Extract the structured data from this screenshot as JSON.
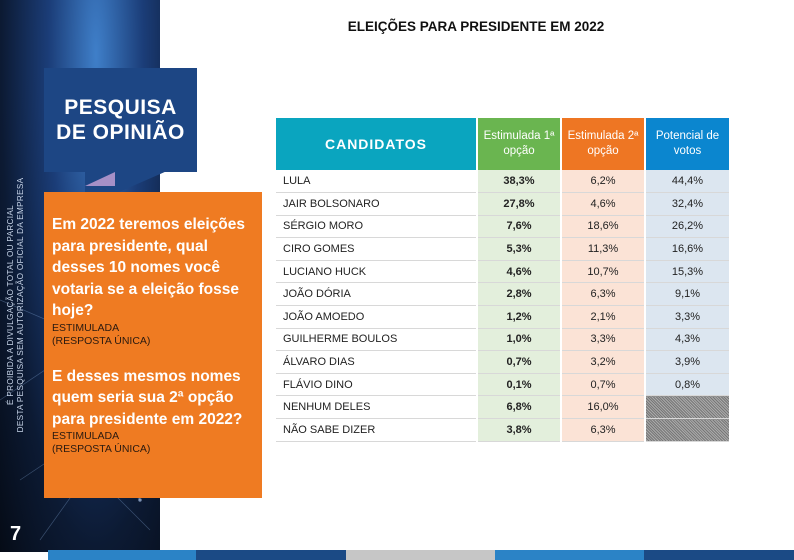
{
  "sidebar": {
    "vertical_notice": [
      "É PROIBIDA A DIVULGAÇÃO TOTAL OU PARCIAL",
      "DESTA PESQUISA SEM AUTORIZAÇÃO OFICIAL DA EMPRESA"
    ],
    "title_line1": "PESQUISA",
    "title_line2": "DE OPINIÃO",
    "question1": "Em 2022 teremos eleições para presidente, qual desses 10 nomes você votaria se a eleição fosse hoje?",
    "question1_sub1": "ESTIMULADA",
    "question1_sub2": "(RESPOSTA ÚNICA)",
    "question2": "E desses mesmos nomes quem seria sua 2ª opção para presidente em 2022?",
    "question2_sub1": "ESTIMULADA",
    "question2_sub2": "(RESPOSTA ÚNICA)",
    "page_number": "7"
  },
  "title": "ELEIÇÕES PARA PRESIDENTE EM 2022",
  "table": {
    "headers": [
      "CANDIDATOS",
      "Estimulada 1ª opção",
      "Estimulada 2ª opção",
      "Potencial de votos"
    ],
    "rows": [
      [
        "LULA",
        "38,3%",
        "6,2%",
        "44,4%"
      ],
      [
        "JAIR BOLSONARO",
        "27,8%",
        "4,6%",
        "32,4%"
      ],
      [
        "SÉRGIO MORO",
        "7,6%",
        "18,6%",
        "26,2%"
      ],
      [
        "CIRO GOMES",
        "5,3%",
        "11,3%",
        "16,6%"
      ],
      [
        "LUCIANO HUCK",
        "4,6%",
        "10,7%",
        "15,3%"
      ],
      [
        "JOÃO DÓRIA",
        "2,8%",
        "6,3%",
        "9,1%"
      ],
      [
        "JOÃO AMOEDO",
        "1,2%",
        "2,1%",
        "3,3%"
      ],
      [
        "GUILHERME BOULOS",
        "1,0%",
        "3,3%",
        "4,3%"
      ],
      [
        "ÁLVARO DIAS",
        "0,7%",
        "3,2%",
        "3,9%"
      ],
      [
        "FLÁVIO DINO",
        "0,1%",
        "0,7%",
        "0,8%"
      ],
      [
        "NENHUM DELES",
        "6,8%",
        "16,0%",
        null
      ],
      [
        "NÃO SABE DIZER",
        "3,8%",
        "6,3%",
        null
      ]
    ]
  },
  "colors": {
    "teal": "#0aa5bf",
    "green": "#6ab550",
    "orange": "#ee7623",
    "blue": "#0b86cf",
    "navy": "#1d4684"
  }
}
